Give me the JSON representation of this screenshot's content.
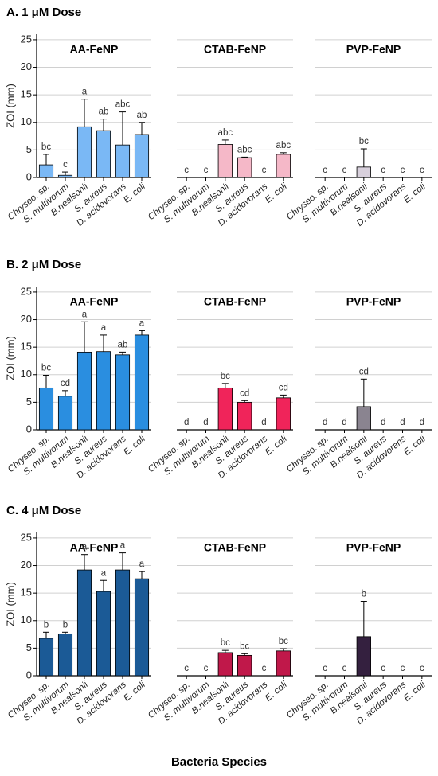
{
  "rows": [
    {
      "title": "A. 1 μM Dose"
    },
    {
      "title": "B. 2 μM Dose"
    },
    {
      "title": "C. 4 μM Dose"
    }
  ],
  "xlabel": "Bacteria Species",
  "chart_data": [
    {
      "type": "bar",
      "title": "AA-FeNP",
      "ylabel": "ZOI (mm)",
      "categories": [
        "Chryseo. sp.",
        "S. multivorum",
        "B.nealsonii",
        "S. aureus",
        "D. acidovorans",
        "E. coli"
      ],
      "values": [
        2.3,
        0.4,
        9.2,
        8.5,
        5.9,
        7.8
      ],
      "errors": [
        1.9,
        0.6,
        5.0,
        2.1,
        6.0,
        2.2
      ],
      "annotations": [
        "bc",
        "c",
        "a",
        "ab",
        "abc",
        "ab"
      ],
      "color": "#7ab8f5",
      "ylim": [
        0,
        26
      ],
      "yticks": [
        0,
        5,
        10,
        15,
        20,
        25
      ],
      "ytick_labels": true,
      "grid": true
    },
    {
      "type": "bar",
      "title": "CTAB-FeNP",
      "categories": [
        "Chryseo. sp.",
        "S. multivorum",
        "B.nealsonii",
        "S. aureus",
        "D. acidovorans",
        "E. coli"
      ],
      "values": [
        0,
        0,
        6.0,
        3.6,
        0,
        4.2
      ],
      "errors": [
        0,
        0,
        0.8,
        0.1,
        0,
        0.3
      ],
      "annotations": [
        "c",
        "c",
        "abc",
        "abc",
        "c",
        "abc"
      ],
      "color": "#f5b8c8",
      "ylim": [
        0,
        26
      ],
      "yticks": [
        0,
        5,
        10,
        15,
        20,
        25
      ],
      "ytick_labels": false,
      "grid": true
    },
    {
      "type": "bar",
      "title": "PVP-FeNP",
      "categories": [
        "Chryseo. sp.",
        "S. multivorum",
        "B.nealsonii",
        "S. aureus",
        "D. acidovorans",
        "E. coli"
      ],
      "values": [
        0,
        0,
        1.9,
        0,
        0,
        0
      ],
      "errors": [
        0,
        0,
        3.3,
        0,
        0,
        0
      ],
      "annotations": [
        "c",
        "c",
        "bc",
        "c",
        "c",
        "c"
      ],
      "color": "#d8d0dc",
      "ylim": [
        0,
        26
      ],
      "yticks": [
        0,
        5,
        10,
        15,
        20,
        25
      ],
      "ytick_labels": false,
      "grid": true
    },
    {
      "type": "bar",
      "title": "AA-FeNP",
      "ylabel": "ZOI (mm)",
      "categories": [
        "Chryseo. sp.",
        "S. multivorum",
        "B.nealsonii",
        "S. aureus",
        "D. acidovorans",
        "E. coli"
      ],
      "values": [
        7.6,
        6.1,
        14.1,
        14.2,
        13.6,
        17.2
      ],
      "errors": [
        2.3,
        1.0,
        5.5,
        3.0,
        0.5,
        0.8
      ],
      "annotations": [
        "bc",
        "cd",
        "a",
        "a",
        "ab",
        "a"
      ],
      "color": "#2a8ee0",
      "ylim": [
        0,
        26
      ],
      "yticks": [
        0,
        5,
        10,
        15,
        20,
        25
      ],
      "ytick_labels": true,
      "grid": true
    },
    {
      "type": "bar",
      "title": "CTAB-FeNP",
      "categories": [
        "Chryseo. sp.",
        "S. multivorum",
        "B.nealsonii",
        "S. aureus",
        "D. acidovorans",
        "E. coli"
      ],
      "values": [
        0,
        0,
        7.6,
        5.0,
        0,
        5.8
      ],
      "errors": [
        0,
        0,
        0.8,
        0.3,
        0,
        0.5
      ],
      "annotations": [
        "d",
        "d",
        "bc",
        "cd",
        "d",
        "cd"
      ],
      "color": "#f0245a",
      "ylim": [
        0,
        26
      ],
      "yticks": [
        0,
        5,
        10,
        15,
        20,
        25
      ],
      "ytick_labels": false,
      "grid": true
    },
    {
      "type": "bar",
      "title": "PVP-FeNP",
      "categories": [
        "Chryseo. sp.",
        "S. multivorum",
        "B.nealsonii",
        "S. aureus",
        "D. acidovorans",
        "E. coli"
      ],
      "values": [
        0,
        0,
        4.2,
        0,
        0,
        0
      ],
      "errors": [
        0,
        0,
        5.0,
        0,
        0,
        0
      ],
      "annotations": [
        "d",
        "d",
        "cd",
        "d",
        "d",
        "d"
      ],
      "color": "#8a8490",
      "ylim": [
        0,
        26
      ],
      "yticks": [
        0,
        5,
        10,
        15,
        20,
        25
      ],
      "ytick_labels": false,
      "grid": true
    },
    {
      "type": "bar",
      "title": "AA-FeNP",
      "ylabel": "ZOI (mm)",
      "categories": [
        "Chryseo. sp.",
        "S. multivorum",
        "B.nealsonii",
        "S. aureus",
        "D. acidovorans",
        "E. coli"
      ],
      "values": [
        6.8,
        7.6,
        19.2,
        15.3,
        19.2,
        17.6
      ],
      "errors": [
        1.1,
        0.3,
        2.8,
        2.0,
        3.1,
        1.3
      ],
      "annotations": [
        "b",
        "b",
        "a",
        "a",
        "a",
        "a"
      ],
      "color": "#1b5a96",
      "ylim": [
        0,
        26
      ],
      "yticks": [
        0,
        5,
        10,
        15,
        20,
        25
      ],
      "ytick_labels": true,
      "grid": true
    },
    {
      "type": "bar",
      "title": "CTAB-FeNP",
      "categories": [
        "Chryseo. sp.",
        "S. multivorum",
        "B.nealsonii",
        "S. aureus",
        "D. acidovorans",
        "E. coli"
      ],
      "values": [
        0,
        0,
        4.2,
        3.7,
        0,
        4.5
      ],
      "errors": [
        0,
        0,
        0.4,
        0.3,
        0,
        0.4
      ],
      "annotations": [
        "c",
        "c",
        "bc",
        "bc",
        "c",
        "bc"
      ],
      "color": "#c0184a",
      "ylim": [
        0,
        26
      ],
      "yticks": [
        0,
        5,
        10,
        15,
        20,
        25
      ],
      "ytick_labels": false,
      "grid": true
    },
    {
      "type": "bar",
      "title": "PVP-FeNP",
      "categories": [
        "Chryseo. sp.",
        "S. multivorum",
        "B.nealsonii",
        "S. aureus",
        "D. acidovorans",
        "E. coli"
      ],
      "values": [
        0,
        0,
        7.1,
        0,
        0,
        0
      ],
      "errors": [
        0,
        0,
        6.4,
        0,
        0,
        0
      ],
      "annotations": [
        "c",
        "c",
        "b",
        "c",
        "c",
        "c"
      ],
      "color": "#34203f",
      "ylim": [
        0,
        26
      ],
      "yticks": [
        0,
        5,
        10,
        15,
        20,
        25
      ],
      "ytick_labels": false,
      "grid": true
    }
  ]
}
